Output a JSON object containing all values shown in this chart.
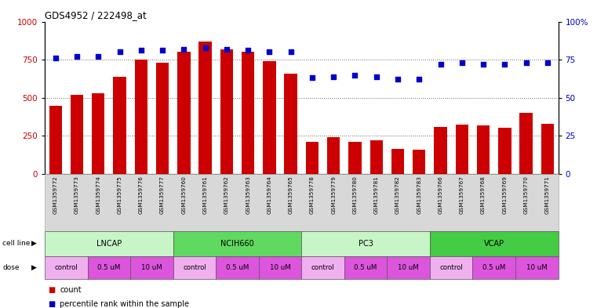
{
  "title": "GDS4952 / 222498_at",
  "samples": [
    "GSM1359772",
    "GSM1359773",
    "GSM1359774",
    "GSM1359775",
    "GSM1359776",
    "GSM1359777",
    "GSM1359760",
    "GSM1359761",
    "GSM1359762",
    "GSM1359763",
    "GSM1359764",
    "GSM1359765",
    "GSM1359778",
    "GSM1359779",
    "GSM1359780",
    "GSM1359781",
    "GSM1359782",
    "GSM1359783",
    "GSM1359766",
    "GSM1359767",
    "GSM1359768",
    "GSM1359769",
    "GSM1359770",
    "GSM1359771"
  ],
  "counts": [
    450,
    520,
    530,
    640,
    750,
    730,
    800,
    870,
    820,
    800,
    740,
    660,
    210,
    240,
    210,
    220,
    165,
    160,
    310,
    325,
    320,
    305,
    400,
    330
  ],
  "percentiles": [
    76,
    77,
    77,
    80,
    81,
    81,
    82,
    83,
    82,
    81,
    80,
    80,
    63,
    64,
    65,
    64,
    62,
    62,
    72,
    73,
    72,
    72,
    73,
    73
  ],
  "cell_lines": [
    {
      "label": "LNCAP",
      "start": 0,
      "end": 6,
      "color": "#c8f5c8"
    },
    {
      "label": "NCIH660",
      "start": 6,
      "end": 12,
      "color": "#60d960"
    },
    {
      "label": "PC3",
      "start": 12,
      "end": 18,
      "color": "#c8f5c8"
    },
    {
      "label": "VCAP",
      "start": 18,
      "end": 24,
      "color": "#44cc44"
    }
  ],
  "doses": [
    {
      "label": "control",
      "start": 0,
      "end": 2
    },
    {
      "label": "0.5 uM",
      "start": 2,
      "end": 4
    },
    {
      "label": "10 uM",
      "start": 4,
      "end": 6
    },
    {
      "label": "control",
      "start": 6,
      "end": 8
    },
    {
      "label": "0.5 uM",
      "start": 8,
      "end": 10
    },
    {
      "label": "10 uM",
      "start": 10,
      "end": 12
    },
    {
      "label": "control",
      "start": 12,
      "end": 14
    },
    {
      "label": "0.5 uM",
      "start": 14,
      "end": 16
    },
    {
      "label": "10 uM",
      "start": 16,
      "end": 18
    },
    {
      "label": "control",
      "start": 18,
      "end": 20
    },
    {
      "label": "0.5 uM",
      "start": 20,
      "end": 22
    },
    {
      "label": "10 uM",
      "start": 22,
      "end": 24
    }
  ],
  "dose_colors": {
    "control": "#f0b0f0",
    "0.5 uM": "#dd55dd",
    "10 uM": "#dd55dd"
  },
  "bar_color": "#cc0000",
  "dot_color": "#0000cc",
  "ylim_left": [
    0,
    1000
  ],
  "ylim_right": [
    0,
    100
  ],
  "yticks_left": [
    0,
    250,
    500,
    750,
    1000
  ],
  "ytick_labels_left": [
    "0",
    "250",
    "500",
    "750",
    "1000"
  ],
  "ytick_labels_right": [
    "0",
    "25",
    "50",
    "75",
    "100%"
  ],
  "yticks_right": [
    0,
    25,
    50,
    75,
    100
  ],
  "bg_color": "#ffffff",
  "grid_color": "#666666",
  "label_area_bg": "#d8d8d8"
}
